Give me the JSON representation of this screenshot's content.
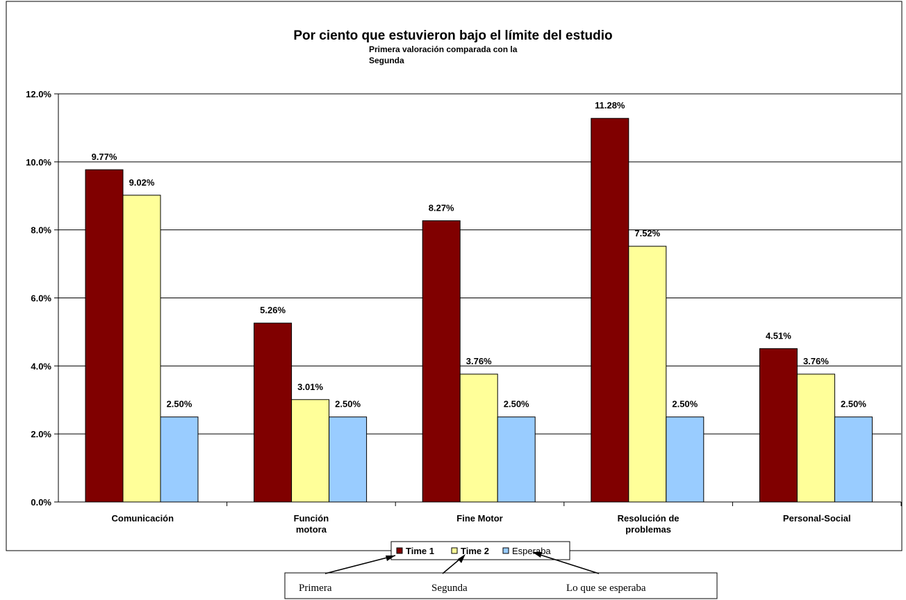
{
  "chart_data": {
    "type": "bar",
    "title": "Por ciento que estuvieron bajo el límite del estudio",
    "subtitle_line1": "Primera valoración comparada con la",
    "subtitle_line2": "Segunda",
    "categories": [
      [
        "Comunicación"
      ],
      [
        "Función",
        "motora"
      ],
      [
        "Fine Motor"
      ],
      [
        "Resolución de",
        "problemas"
      ],
      [
        "Personal-Social"
      ]
    ],
    "series": [
      {
        "name": "Time 1",
        "values": [
          9.77,
          5.26,
          8.27,
          11.28,
          4.51
        ],
        "labels": [
          "9.77%",
          "5.26%",
          "8.27%",
          "11.28%",
          "4.51%"
        ],
        "color": "#800000"
      },
      {
        "name": "Time 2",
        "values": [
          9.02,
          3.01,
          3.76,
          7.52,
          3.76
        ],
        "labels": [
          "9.02%",
          "3.01%",
          "3.76%",
          "7.52%",
          "3.76%"
        ],
        "color": "#FFFF99"
      },
      {
        "name": "Esperaba",
        "values": [
          2.5,
          2.5,
          2.5,
          2.5,
          2.5
        ],
        "labels": [
          "2.50%",
          "2.50%",
          "2.50%",
          "2.50%",
          "2.50%"
        ],
        "color": "#99CCFF"
      }
    ],
    "ylim": [
      0,
      12
    ],
    "yticks": [
      "0.0%",
      "2.0%",
      "4.0%",
      "6.0%",
      "8.0%",
      "10.0%",
      "12.0%"
    ],
    "grid": true,
    "legend_position": "bottom"
  },
  "annotation": {
    "labels": [
      "Primera",
      "Segunda",
      "Lo que se esperaba"
    ]
  }
}
